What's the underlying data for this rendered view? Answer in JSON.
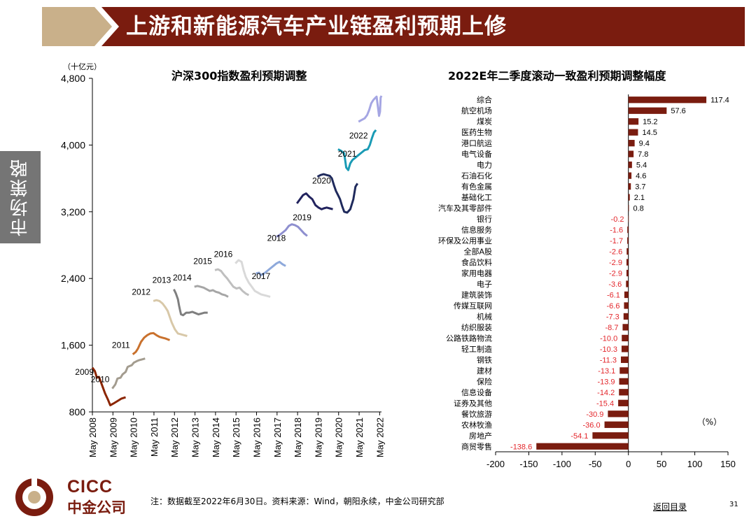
{
  "title": "上游和新能源汽车产业链盈利预期上修",
  "side_tab": "市场策略",
  "colors": {
    "header_dark": "#7a1c0f",
    "header_light": "#c9b08a",
    "side_tab": "#757575",
    "bar": "#7a1c0f",
    "negative_label": "#e3262b"
  },
  "footer": {
    "logo_latin": "CICC",
    "logo_cn": "中金公司",
    "note": "注：数据截至2022年6月30日。资料来源：Wind，朝阳永续，中金公司研究部",
    "back_link": "返回目录",
    "page_number": "31"
  },
  "chart_data": [
    {
      "type": "line",
      "title": "沪深300指数盈利预期调整",
      "ylabel": "（十亿元）",
      "ylim": [
        800,
        4800
      ],
      "yticks": [
        "800",
        "1,600",
        "2,400",
        "3,200",
        "4,000",
        "4,800"
      ],
      "xticks": [
        "May 2008",
        "May 2009",
        "May 2010",
        "May 2011",
        "May 2012",
        "May 2013",
        "May 2014",
        "May 2015",
        "May 2016",
        "May 2017",
        "May 2018",
        "May 2019",
        "May 2020",
        "May 2021",
        "May 2022"
      ],
      "xlim": [
        2008.33,
        2022.42
      ],
      "series": [
        {
          "name": "2009",
          "color": "#8b2500",
          "points": [
            [
              2008.33,
              1330
            ],
            [
              2008.45,
              1290
            ],
            [
              2008.55,
              1210
            ],
            [
              2008.65,
              1220
            ],
            [
              2008.8,
              1120
            ],
            [
              2008.95,
              1020
            ],
            [
              2009.1,
              940
            ],
            [
              2009.2,
              880
            ],
            [
              2009.35,
              900
            ],
            [
              2009.55,
              930
            ],
            [
              2009.75,
              960
            ],
            [
              2009.95,
              975
            ]
          ]
        },
        {
          "name": "2010",
          "color": "#a39c8f",
          "points": [
            [
              2009.3,
              1080
            ],
            [
              2009.45,
              1130
            ],
            [
              2009.55,
              1200
            ],
            [
              2009.7,
              1210
            ],
            [
              2009.8,
              1250
            ],
            [
              2009.95,
              1280
            ],
            [
              2010.05,
              1340
            ],
            [
              2010.15,
              1350
            ],
            [
              2010.25,
              1360
            ],
            [
              2010.35,
              1390
            ],
            [
              2010.5,
              1410
            ],
            [
              2010.6,
              1420
            ],
            [
              2010.75,
              1430
            ],
            [
              2010.9,
              1440
            ]
          ]
        },
        {
          "name": "2011",
          "color": "#c9712d",
          "points": [
            [
              2010.3,
              1490
            ],
            [
              2010.45,
              1520
            ],
            [
              2010.55,
              1560
            ],
            [
              2010.7,
              1640
            ],
            [
              2010.85,
              1690
            ],
            [
              2011.0,
              1720
            ],
            [
              2011.15,
              1740
            ],
            [
              2011.3,
              1745
            ],
            [
              2011.45,
              1720
            ],
            [
              2011.6,
              1700
            ],
            [
              2011.75,
              1690
            ],
            [
              2011.9,
              1680
            ],
            [
              2012.1,
              1660
            ]
          ]
        },
        {
          "name": "2012",
          "color": "#d8c8a8",
          "points": [
            [
              2011.3,
              2130
            ],
            [
              2011.45,
              2140
            ],
            [
              2011.6,
              2130
            ],
            [
              2011.75,
              2100
            ],
            [
              2011.9,
              2050
            ],
            [
              2012.0,
              2010
            ],
            [
              2012.1,
              1940
            ],
            [
              2012.2,
              1870
            ],
            [
              2012.35,
              1790
            ],
            [
              2012.5,
              1740
            ],
            [
              2012.65,
              1730
            ],
            [
              2012.8,
              1720
            ],
            [
              2012.95,
              1710
            ]
          ]
        },
        {
          "name": "2013",
          "color": "#7f7f7f",
          "points": [
            [
              2012.3,
              2270
            ],
            [
              2012.4,
              2220
            ],
            [
              2012.5,
              2150
            ],
            [
              2012.55,
              2080
            ],
            [
              2012.6,
              2020
            ],
            [
              2012.65,
              1970
            ],
            [
              2012.75,
              1960
            ],
            [
              2012.9,
              1990
            ],
            [
              2013.05,
              1990
            ],
            [
              2013.2,
              2000
            ],
            [
              2013.35,
              1985
            ],
            [
              2013.5,
              1970
            ],
            [
              2013.65,
              1980
            ],
            [
              2013.8,
              1990
            ],
            [
              2013.95,
              1990
            ]
          ]
        },
        {
          "name": "2014",
          "color": "#a6a6a6",
          "points": [
            [
              2013.3,
              2300
            ],
            [
              2013.45,
              2310
            ],
            [
              2013.6,
              2300
            ],
            [
              2013.75,
              2290
            ],
            [
              2013.9,
              2270
            ],
            [
              2014.05,
              2250
            ],
            [
              2014.2,
              2260
            ],
            [
              2014.35,
              2240
            ],
            [
              2014.5,
              2230
            ],
            [
              2014.65,
              2210
            ],
            [
              2014.8,
              2200
            ],
            [
              2014.95,
              2180
            ]
          ]
        },
        {
          "name": "2015",
          "color": "#bfbfbf",
          "points": [
            [
              2014.3,
              2500
            ],
            [
              2014.45,
              2510
            ],
            [
              2014.6,
              2490
            ],
            [
              2014.75,
              2440
            ],
            [
              2014.9,
              2400
            ],
            [
              2015.05,
              2350
            ],
            [
              2015.2,
              2300
            ],
            [
              2015.35,
              2280
            ],
            [
              2015.5,
              2290
            ],
            [
              2015.65,
              2250
            ],
            [
              2015.8,
              2220
            ],
            [
              2015.95,
              2200
            ]
          ]
        },
        {
          "name": "2016",
          "color": "#d9d9d9",
          "points": [
            [
              2015.3,
              2580
            ],
            [
              2015.45,
              2620
            ],
            [
              2015.6,
              2600
            ],
            [
              2015.7,
              2500
            ],
            [
              2015.8,
              2420
            ],
            [
              2015.95,
              2350
            ],
            [
              2016.1,
              2300
            ],
            [
              2016.25,
              2250
            ],
            [
              2016.4,
              2230
            ],
            [
              2016.55,
              2210
            ],
            [
              2016.7,
              2200
            ],
            [
              2016.85,
              2190
            ],
            [
              2017.0,
              2180
            ]
          ]
        },
        {
          "name": "2017",
          "color": "#8ea9db",
          "points": [
            [
              2016.3,
              2460
            ],
            [
              2016.45,
              2470
            ],
            [
              2016.55,
              2440
            ],
            [
              2016.7,
              2460
            ],
            [
              2016.85,
              2490
            ],
            [
              2017.0,
              2520
            ],
            [
              2017.15,
              2550
            ],
            [
              2017.3,
              2580
            ],
            [
              2017.45,
              2600
            ],
            [
              2017.6,
              2570
            ],
            [
              2017.75,
              2550
            ]
          ]
        },
        {
          "name": "2018",
          "color": "#8e8fcf",
          "points": [
            [
              2017.3,
              2900
            ],
            [
              2017.45,
              2920
            ],
            [
              2017.6,
              2950
            ],
            [
              2017.75,
              2980
            ],
            [
              2017.9,
              3030
            ],
            [
              2018.05,
              3050
            ],
            [
              2018.2,
              3040
            ],
            [
              2018.35,
              3020
            ],
            [
              2018.5,
              2980
            ],
            [
              2018.65,
              2940
            ],
            [
              2018.8,
              2910
            ]
          ]
        },
        {
          "name": "2019",
          "color": "#22235e",
          "points": [
            [
              2018.3,
              3300
            ],
            [
              2018.45,
              3350
            ],
            [
              2018.6,
              3400
            ],
            [
              2018.75,
              3420
            ],
            [
              2018.9,
              3380
            ],
            [
              2019.05,
              3350
            ],
            [
              2019.2,
              3280
            ],
            [
              2019.35,
              3250
            ],
            [
              2019.5,
              3230
            ],
            [
              2019.6,
              3240
            ],
            [
              2019.75,
              3250
            ],
            [
              2019.9,
              3240
            ],
            [
              2020.05,
              3230
            ]
          ]
        },
        {
          "name": "2020",
          "color": "#1f2a5c",
          "points": [
            [
              2019.3,
              3620
            ],
            [
              2019.45,
              3640
            ],
            [
              2019.6,
              3650
            ],
            [
              2019.75,
              3640
            ],
            [
              2019.9,
              3630
            ],
            [
              2020.0,
              3600
            ],
            [
              2020.1,
              3520
            ],
            [
              2020.2,
              3450
            ],
            [
              2020.3,
              3400
            ],
            [
              2020.4,
              3350
            ],
            [
              2020.5,
              3270
            ],
            [
              2020.6,
              3200
            ],
            [
              2020.75,
              3190
            ],
            [
              2020.9,
              3230
            ],
            [
              2021.05,
              3350
            ],
            [
              2021.15,
              3500
            ],
            [
              2021.25,
              3540
            ]
          ]
        },
        {
          "name": "2021",
          "color": "#1a9bb5",
          "points": [
            [
              2020.3,
              3950
            ],
            [
              2020.45,
              3930
            ],
            [
              2020.6,
              3900
            ],
            [
              2020.65,
              3820
            ],
            [
              2020.7,
              3730
            ],
            [
              2020.8,
              3700
            ],
            [
              2020.9,
              3780
            ],
            [
              2021.0,
              3820
            ],
            [
              2021.15,
              3850
            ],
            [
              2021.3,
              3880
            ],
            [
              2021.45,
              3910
            ],
            [
              2021.6,
              3940
            ],
            [
              2021.75,
              3950
            ],
            [
              2021.85,
              4000
            ],
            [
              2021.95,
              4080
            ],
            [
              2022.05,
              4150
            ],
            [
              2022.15,
              4180
            ]
          ]
        },
        {
          "name": "2022",
          "color": "#a5a6e3",
          "points": [
            [
              2021.3,
              4280
            ],
            [
              2021.45,
              4300
            ],
            [
              2021.6,
              4320
            ],
            [
              2021.72,
              4360
            ],
            [
              2021.82,
              4420
            ],
            [
              2021.92,
              4500
            ],
            [
              2022.02,
              4540
            ],
            [
              2022.1,
              4560
            ],
            [
              2022.18,
              4580
            ],
            [
              2022.25,
              4450
            ],
            [
              2022.3,
              4350
            ],
            [
              2022.35,
              4400
            ],
            [
              2022.38,
              4570
            ],
            [
              2022.42,
              4590
            ]
          ]
        }
      ]
    },
    {
      "type": "bar",
      "orientation": "horizontal",
      "title": "2022E年二季度滚动一致盈利预期调整幅度",
      "unit": "（%）",
      "xlim": [
        -200,
        150
      ],
      "xticks": [
        "-200",
        "-150",
        "-100",
        "-50",
        "0",
        "50",
        "100",
        "150"
      ],
      "categories": [
        "综合",
        "航空机场",
        "煤炭",
        "医药生物",
        "港口航运",
        "电气设备",
        "电力",
        "石油石化",
        "有色金属",
        "基础化工",
        "汽车及其零部件",
        "银行",
        "信息服务",
        "环保及公用事业",
        "全部A股",
        "食品饮料",
        "家用电器",
        "电子",
        "建筑装饰",
        "传媒互联网",
        "机械",
        "纺织服装",
        "公路铁路物流",
        "轻工制造",
        "钢铁",
        "建材",
        "保险",
        "信息设备",
        "证券及其他",
        "餐饮旅游",
        "农林牧渔",
        "房地产",
        "商贸零售"
      ],
      "values": [
        117.4,
        57.6,
        15.2,
        14.5,
        9.4,
        7.8,
        5.4,
        4.6,
        3.7,
        2.1,
        0.8,
        -0.2,
        -1.6,
        -1.7,
        -2.6,
        -2.9,
        -2.9,
        -3.6,
        -6.1,
        -6.6,
        -7.3,
        -8.7,
        -10.0,
        -10.3,
        -11.3,
        -13.1,
        -13.9,
        -14.2,
        -15.4,
        -30.9,
        -36.0,
        -54.1,
        -138.6
      ],
      "value_labels": [
        "117.4",
        "57.6",
        "15.2",
        "14.5",
        "9.4",
        "7.8",
        "5.4",
        "4.6",
        "3.7",
        "2.1",
        "0.8",
        "-0.2",
        "-1.6",
        "-1.7",
        "-2.6",
        "-2.9",
        "-2.9",
        "-3.6",
        "-6.1",
        "-6.6",
        "-7.3",
        "-8.7",
        "-10.0",
        "-10.3",
        "-11.3",
        "-13.1",
        "-13.9",
        "-14.2",
        "-15.4",
        "-30.9",
        "-36.0",
        "-54.1",
        "-138.6"
      ]
    }
  ]
}
